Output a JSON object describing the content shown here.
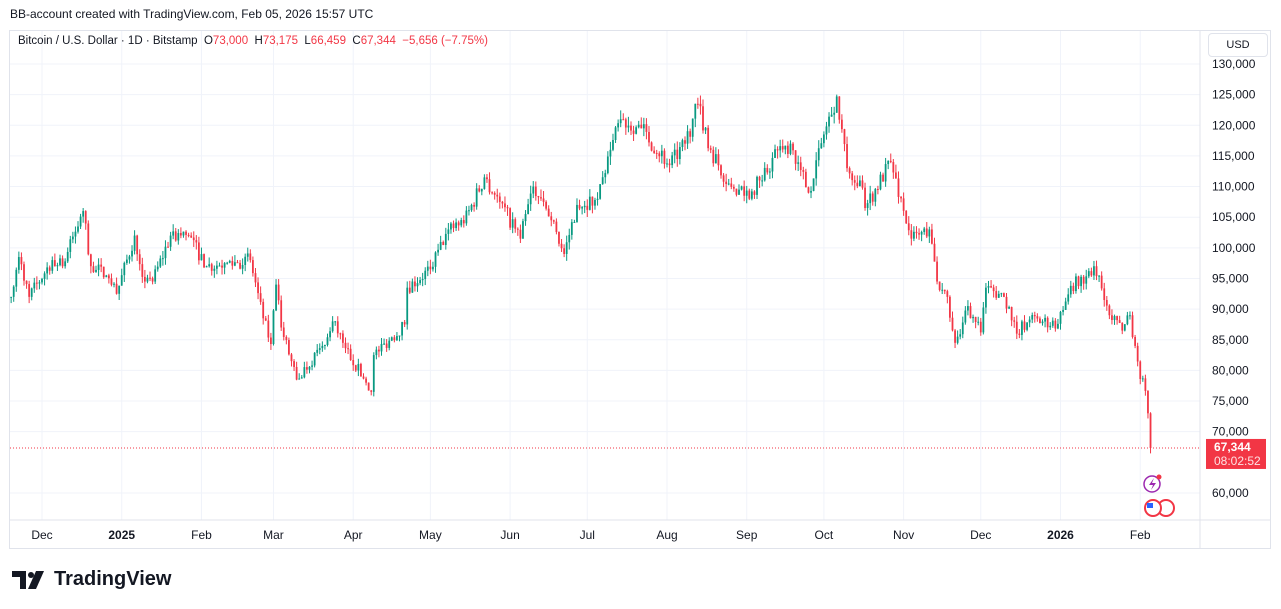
{
  "header": {
    "watermark": "BB-account created with TradingView.com, Feb 05, 2026 15:57 UTC"
  },
  "legend": {
    "symbol": "Bitcoin / U.S. Dollar · 1D · Bitstamp",
    "o_label": "O",
    "o": "73,000",
    "h_label": "H",
    "h": "73,175",
    "l_label": "L",
    "l": "66,459",
    "c_label": "C",
    "c": "67,344",
    "change": "−5,656 (−7.75%)"
  },
  "currency_button": "USD",
  "last_price": {
    "price": "67,344",
    "countdown": "08:02:52"
  },
  "brand": "TradingView",
  "colors": {
    "up": "#089981",
    "down": "#f23645",
    "grid": "#f0f3fa"
  },
  "chart_data": {
    "type": "candlestick",
    "title": "Bitcoin / U.S. Dollar · 1D · Bitstamp",
    "ylim": [
      55000,
      132000
    ],
    "y_ticks": [
      60000,
      70000,
      75000,
      80000,
      85000,
      90000,
      95000,
      100000,
      105000,
      110000,
      115000,
      120000,
      125000,
      130000
    ],
    "y_tick_labels": [
      "60,000",
      "70,000",
      "75,000",
      "80,000",
      "85,000",
      "90,000",
      "95,000",
      "100,000",
      "105,000",
      "110,000",
      "115,000",
      "120,000",
      "125,000",
      "130,000"
    ],
    "x_ticks": [
      {
        "date": "2024-12-01",
        "label": "Dec"
      },
      {
        "date": "2025-01-01",
        "label": "2025"
      },
      {
        "date": "2025-02-01",
        "label": "Feb"
      },
      {
        "date": "2025-03-01",
        "label": "Mar"
      },
      {
        "date": "2025-04-01",
        "label": "Apr"
      },
      {
        "date": "2025-05-01",
        "label": "May"
      },
      {
        "date": "2025-06-01",
        "label": "Jun"
      },
      {
        "date": "2025-07-01",
        "label": "Jul"
      },
      {
        "date": "2025-08-01",
        "label": "Aug"
      },
      {
        "date": "2025-09-01",
        "label": "Sep"
      },
      {
        "date": "2025-10-01",
        "label": "Oct"
      },
      {
        "date": "2025-11-01",
        "label": "Nov"
      },
      {
        "date": "2025-12-01",
        "label": "Dec"
      },
      {
        "date": "2026-01-01",
        "label": "2026"
      },
      {
        "date": "2026-02-01",
        "label": "Feb"
      }
    ],
    "close_anchors": [
      [
        "2024-11-19",
        92000
      ],
      [
        "2024-11-22",
        98500
      ],
      [
        "2024-11-26",
        92000
      ],
      [
        "2024-12-05",
        98000
      ],
      [
        "2024-12-09",
        97000
      ],
      [
        "2024-12-17",
        106000
      ],
      [
        "2024-12-20",
        97000
      ],
      [
        "2024-12-26",
        95500
      ],
      [
        "2024-12-30",
        92500
      ],
      [
        "2025-01-06",
        102000
      ],
      [
        "2025-01-10",
        94500
      ],
      [
        "2025-01-13",
        94500
      ],
      [
        "2025-01-20",
        102000
      ],
      [
        "2025-01-27",
        102000
      ],
      [
        "2025-02-03",
        97000
      ],
      [
        "2025-02-10",
        97500
      ],
      [
        "2025-02-20",
        98000
      ],
      [
        "2025-02-25",
        88500
      ],
      [
        "2025-02-28",
        84300
      ],
      [
        "2025-03-02",
        94000
      ],
      [
        "2025-03-04",
        87000
      ],
      [
        "2025-03-10",
        78500
      ],
      [
        "2025-03-20",
        84000
      ],
      [
        "2025-03-24",
        88000
      ],
      [
        "2025-03-28",
        84500
      ],
      [
        "2025-04-06",
        78000
      ],
      [
        "2025-04-08",
        76500
      ],
      [
        "2025-04-09",
        82500
      ],
      [
        "2025-04-21",
        87500
      ],
      [
        "2025-04-22",
        93500
      ],
      [
        "2025-05-01",
        96500
      ],
      [
        "2025-05-08",
        103000
      ],
      [
        "2025-05-14",
        104000
      ],
      [
        "2025-05-22",
        111500
      ],
      [
        "2025-05-28",
        107500
      ],
      [
        "2025-06-05",
        101500
      ],
      [
        "2025-06-10",
        110000
      ],
      [
        "2025-06-17",
        104500
      ],
      [
        "2025-06-22",
        99000
      ],
      [
        "2025-06-27",
        107000
      ],
      [
        "2025-07-05",
        108000
      ],
      [
        "2025-07-10",
        116000
      ],
      [
        "2025-07-14",
        121000
      ],
      [
        "2025-07-22",
        119500
      ],
      [
        "2025-08-02",
        113500
      ],
      [
        "2025-08-08",
        117000
      ],
      [
        "2025-08-13",
        123500
      ],
      [
        "2025-08-18",
        116000
      ],
      [
        "2025-08-25",
        110500
      ],
      [
        "2025-08-31",
        108500
      ],
      [
        "2025-09-07",
        111000
      ],
      [
        "2025-09-13",
        115900
      ],
      [
        "2025-09-18",
        117000
      ],
      [
        "2025-09-22",
        112700
      ],
      [
        "2025-09-25",
        109000
      ],
      [
        "2025-10-01",
        118500
      ],
      [
        "2025-10-06",
        124700
      ],
      [
        "2025-10-10",
        113000
      ],
      [
        "2025-10-15",
        111000
      ],
      [
        "2025-10-17",
        106500
      ],
      [
        "2025-10-27",
        114000
      ],
      [
        "2025-11-04",
        101500
      ],
      [
        "2025-11-11",
        103000
      ],
      [
        "2025-11-14",
        94500
      ],
      [
        "2025-11-18",
        92000
      ],
      [
        "2025-11-21",
        84500
      ],
      [
        "2025-11-26",
        90500
      ],
      [
        "2025-12-01",
        86200
      ],
      [
        "2025-12-03",
        93500
      ],
      [
        "2025-12-10",
        92000
      ],
      [
        "2025-12-15",
        86000
      ],
      [
        "2025-12-20",
        88300
      ],
      [
        "2025-12-31",
        87600
      ],
      [
        "2026-01-05",
        93800
      ],
      [
        "2026-01-13",
        95500
      ],
      [
        "2026-01-14",
        97000
      ],
      [
        "2026-01-20",
        89000
      ],
      [
        "2026-01-25",
        86500
      ],
      [
        "2026-01-28",
        89000
      ],
      [
        "2026-01-30",
        84000
      ],
      [
        "2026-02-01",
        78600
      ],
      [
        "2026-02-02",
        78700
      ],
      [
        "2026-02-04",
        73000
      ]
    ],
    "last_candle": {
      "date": "2026-02-05",
      "open": 73000,
      "high": 73175,
      "low": 66459,
      "close": 67344
    }
  }
}
